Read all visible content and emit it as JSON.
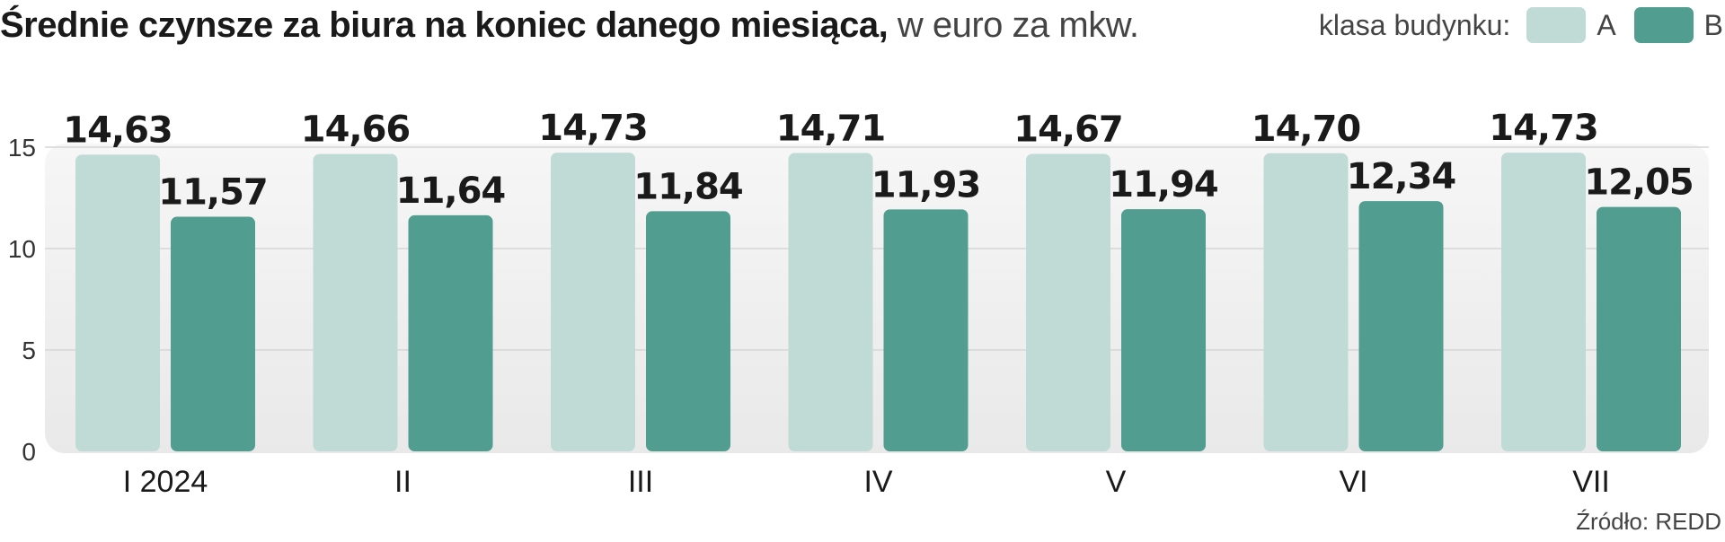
{
  "title": {
    "bold": "Średnie czynsze za biura na koniec danego miesiąca,",
    "light": " w euro za mkw."
  },
  "legend": {
    "label": "klasa budynku:",
    "items": [
      {
        "name": "A",
        "color": "#c0dbd5"
      },
      {
        "name": "B",
        "color": "#519d8f"
      }
    ]
  },
  "source": "Źródło: REDD",
  "chart_data": {
    "type": "bar",
    "categories": [
      "I 2024",
      "II",
      "III",
      "IV",
      "V",
      "VI",
      "VII"
    ],
    "series": [
      {
        "name": "A",
        "color": "#c0dbd5",
        "values": [
          14.63,
          14.66,
          14.73,
          14.71,
          14.67,
          14.7,
          14.73
        ],
        "labels": [
          "14,63",
          "14,66",
          "14,73",
          "14,71",
          "14,67",
          "14,70",
          "14,73"
        ]
      },
      {
        "name": "B",
        "color": "#519d8f",
        "values": [
          11.57,
          11.64,
          11.84,
          11.93,
          11.94,
          12.34,
          12.05
        ],
        "labels": [
          "11,57",
          "11,64",
          "11,84",
          "11,93",
          "11,94",
          "12,34",
          "12,05"
        ]
      }
    ],
    "yticks": [
      0,
      5,
      10,
      15
    ],
    "ylim": [
      0,
      15
    ],
    "grid": true,
    "legend_position": "top-right"
  }
}
